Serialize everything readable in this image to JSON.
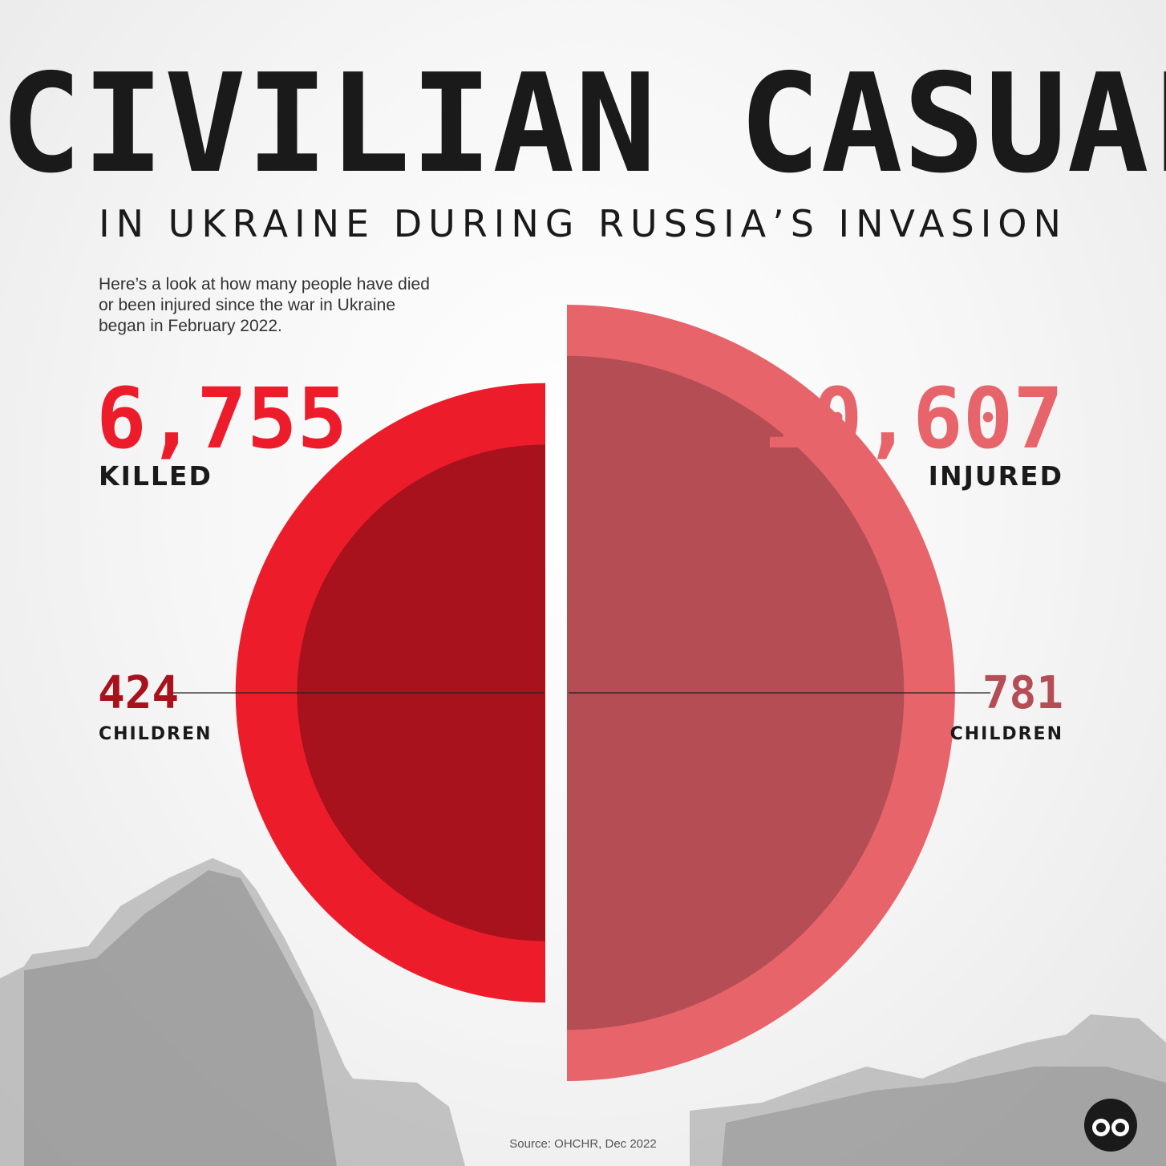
{
  "title": "CIVILIAN CASUALTIES",
  "subtitle": "IN UKRAINE DURING RUSSIA’S INVASION",
  "intro": "Here’s a look at how many people have died or been injured since the war in Ukraine began in February 2022.",
  "source": "Source: OHCHR, Dec 2022",
  "colors": {
    "killed": "#ed1c2b",
    "killed_children": "#a8121c",
    "injured": "#e7646b",
    "injured_children": "#b54d55",
    "text": "#1a1a1a"
  },
  "chart_data": {
    "type": "pie",
    "title": "CIVILIAN CASUALTIES",
    "series": [
      {
        "key": "killed",
        "name": "KILLED",
        "value": 6755,
        "label": "6,755",
        "children": {
          "name": "CHILDREN",
          "value": 424,
          "label": "424"
        }
      },
      {
        "key": "injured",
        "name": "INJURED",
        "value": 10607,
        "label": "10,607",
        "children": {
          "name": "CHILDREN",
          "value": 781,
          "label": "781"
        }
      }
    ]
  }
}
